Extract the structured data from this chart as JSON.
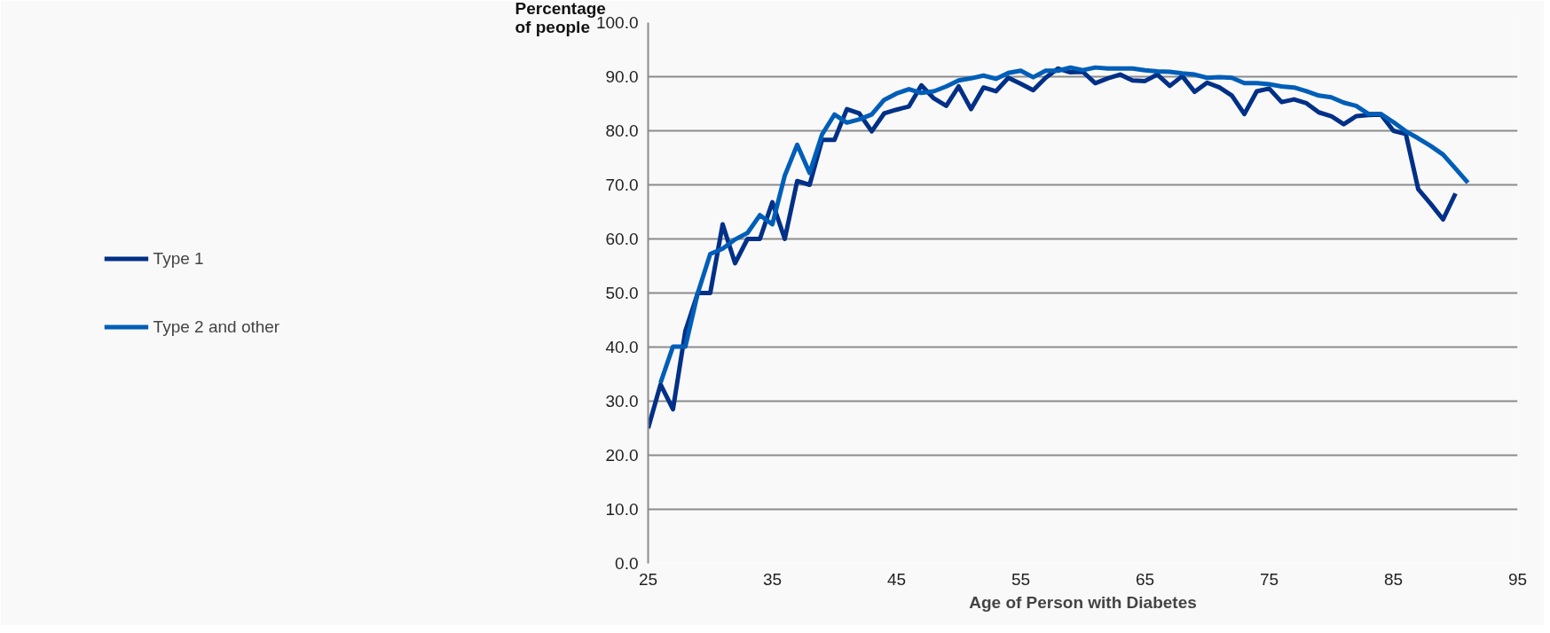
{
  "chart_data": {
    "type": "line",
    "ylabel": "Percentage of people",
    "xlabel": "Age of Person with Diabetes",
    "xlim": [
      25,
      95
    ],
    "xticks": [
      25,
      35,
      45,
      55,
      65,
      75,
      85,
      95
    ],
    "ylim": [
      0,
      100
    ],
    "yticks": [
      {
        "value": 0,
        "label": "0.0"
      },
      {
        "value": 10,
        "label": "10.0"
      },
      {
        "value": 20,
        "label": "20.0"
      },
      {
        "value": 30,
        "label": "30.0"
      },
      {
        "value": 40,
        "label": "40.0"
      },
      {
        "value": 50,
        "label": "50.0"
      },
      {
        "value": 60,
        "label": "60.0"
      },
      {
        "value": 70,
        "label": "70.0"
      },
      {
        "value": 80,
        "label": "80.0"
      },
      {
        "value": 90,
        "label": "90.0"
      },
      {
        "value": 100,
        "label": "100.0"
      }
    ],
    "grid": "y",
    "legend": "left",
    "marker": "none",
    "line_style": "solid",
    "series": [
      {
        "name": "Type 1",
        "color": "#003087",
        "x": [
          25,
          26,
          27,
          28,
          29,
          30,
          31,
          32,
          33,
          34,
          35,
          36,
          37,
          38,
          39,
          40,
          41,
          42,
          43,
          44,
          45,
          46,
          47,
          48,
          49,
          50,
          51,
          52,
          53,
          54,
          55,
          56,
          57,
          58,
          59,
          60,
          61,
          62,
          63,
          64,
          65,
          66,
          67,
          68,
          69,
          70,
          71,
          72,
          73,
          74,
          75,
          76,
          77,
          78,
          79,
          80,
          81,
          82,
          83,
          84,
          85,
          86,
          87,
          88,
          89,
          90
        ],
        "values": [
          25,
          33.1,
          28.5,
          43.0,
          50,
          50,
          62.7,
          55.5,
          60,
          60,
          66.8,
          60,
          70.7,
          70,
          78.3,
          78.3,
          84,
          83.2,
          79.9,
          83.2,
          83.9,
          84.5,
          88.4,
          86.0,
          84.6,
          88.2,
          84.0,
          88.0,
          87.3,
          89.8,
          88.7,
          87.5,
          89.8,
          91.5,
          90.8,
          90.9,
          88.8,
          89.7,
          90.4,
          89.3,
          89.2,
          90.4,
          88.3,
          90.1,
          87.2,
          88.9,
          88.0,
          86.5,
          83.1,
          87.3,
          87.8,
          85.3,
          85.8,
          85.1,
          83.4,
          82.7,
          81.2,
          82.7,
          82.9,
          83.0,
          80.0,
          79.4,
          69.2,
          66.5,
          63.6,
          68.4
        ]
      },
      {
        "name": "Type 2 and other",
        "color": "#005eb8",
        "x": [
          26,
          27,
          28,
          29,
          30,
          31,
          32,
          33,
          34,
          35,
          36,
          37,
          38,
          39,
          40,
          41,
          42,
          43,
          44,
          45,
          46,
          47,
          48,
          49,
          50,
          51,
          52,
          53,
          54,
          55,
          56,
          57,
          58,
          59,
          60,
          61,
          62,
          63,
          64,
          65,
          66,
          67,
          68,
          69,
          70,
          71,
          72,
          73,
          74,
          75,
          76,
          77,
          78,
          79,
          80,
          81,
          82,
          83,
          84,
          85,
          86,
          87,
          88,
          89,
          90,
          91
        ],
        "values": [
          33.4,
          40.1,
          40.1,
          50,
          57.2,
          58.2,
          59.9,
          61.1,
          64.4,
          62.7,
          71.7,
          77.4,
          72.2,
          79.3,
          83.0,
          81.5,
          82.1,
          83.0,
          85.7,
          86.9,
          87.7,
          87.0,
          87.3,
          88.2,
          89.3,
          89.7,
          90.2,
          89.6,
          90.7,
          91.1,
          89.9,
          91.1,
          91.1,
          91.7,
          91.2,
          91.7,
          91.5,
          91.5,
          91.5,
          91.2,
          91.0,
          90.9,
          90.6,
          90.4,
          89.8,
          89.9,
          89.8,
          88.8,
          88.8,
          88.6,
          88.2,
          88.0,
          87.3,
          86.5,
          86.2,
          85.2,
          84.6,
          83.1,
          83.1,
          81.6,
          79.9,
          78.6,
          77.2,
          75.6,
          73.0,
          70.4
        ]
      }
    ]
  }
}
